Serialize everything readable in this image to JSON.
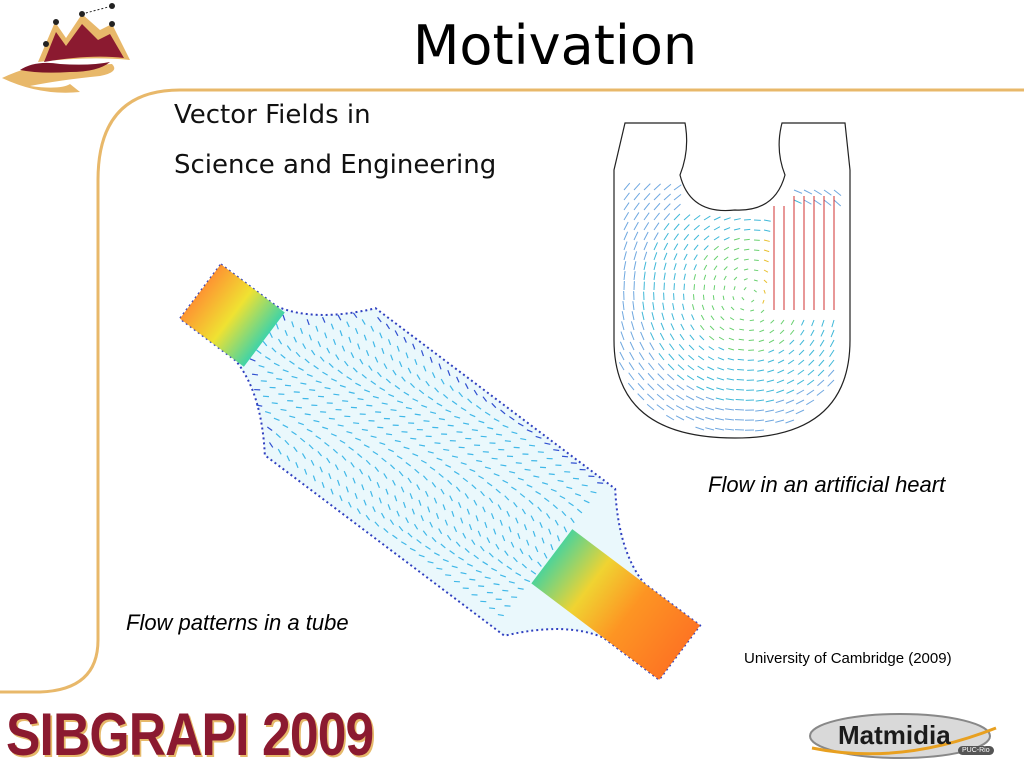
{
  "slide": {
    "title": "Motivation",
    "subtitle_line1": "Vector Fields in",
    "subtitle_line2": "Science and Engineering"
  },
  "figures": {
    "tube_caption": "Flow patterns in a tube",
    "heart_caption": "Flow in an artificial heart",
    "credit": "University of Cambridge (2009)"
  },
  "branding": {
    "left_logo_text": "SIBGRAPI 2009",
    "right_logo_text": "Matmidia",
    "right_logo_badge": "PUC-Rio"
  },
  "colors": {
    "frame": "#e8b86a",
    "brand": "#8b1a30",
    "slow": "#40c8f0",
    "fast": "#e8401e"
  }
}
